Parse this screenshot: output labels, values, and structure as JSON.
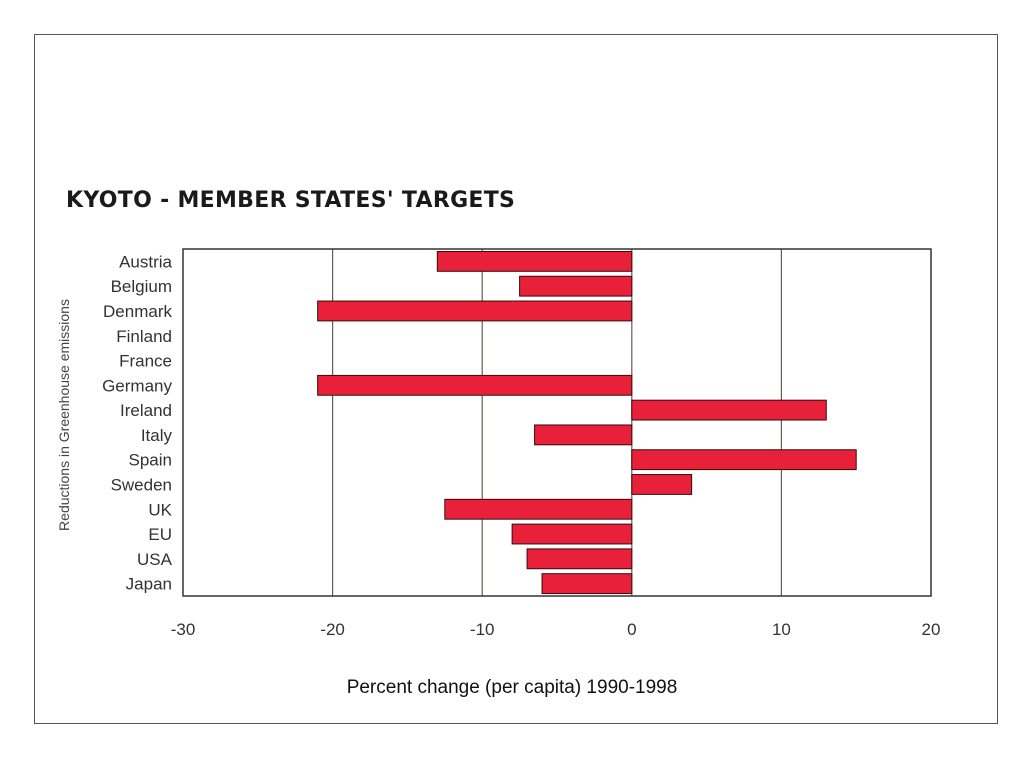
{
  "chart_data": {
    "type": "bar",
    "orientation": "horizontal",
    "title": "KYOTO - MEMBER STATES' TARGETS",
    "ylabel": "Reductions in Greenhouse emissions",
    "xlabel": "Percent change (per capita) 1990-1998",
    "categories": [
      "Austria",
      "Belgium",
      "Denmark",
      "Finland",
      "France",
      "Germany",
      "Ireland",
      "Italy",
      "Spain",
      "Sweden",
      "UK",
      "EU",
      "USA",
      "Japan"
    ],
    "values": [
      -13,
      -7.5,
      -21,
      0,
      0,
      -21,
      13,
      -6.5,
      15,
      4,
      -12.5,
      -8,
      -7,
      -6
    ],
    "xlim": [
      -30,
      20
    ],
    "x_ticks": [
      -30,
      -20,
      -10,
      0,
      10,
      20
    ],
    "grid": "vertical",
    "legend": "none"
  },
  "colors": {
    "bar_fill": "#e8203a",
    "bar_stroke": "#3a0a0a",
    "gridline": "#6e5a52",
    "frame": "#333333"
  }
}
